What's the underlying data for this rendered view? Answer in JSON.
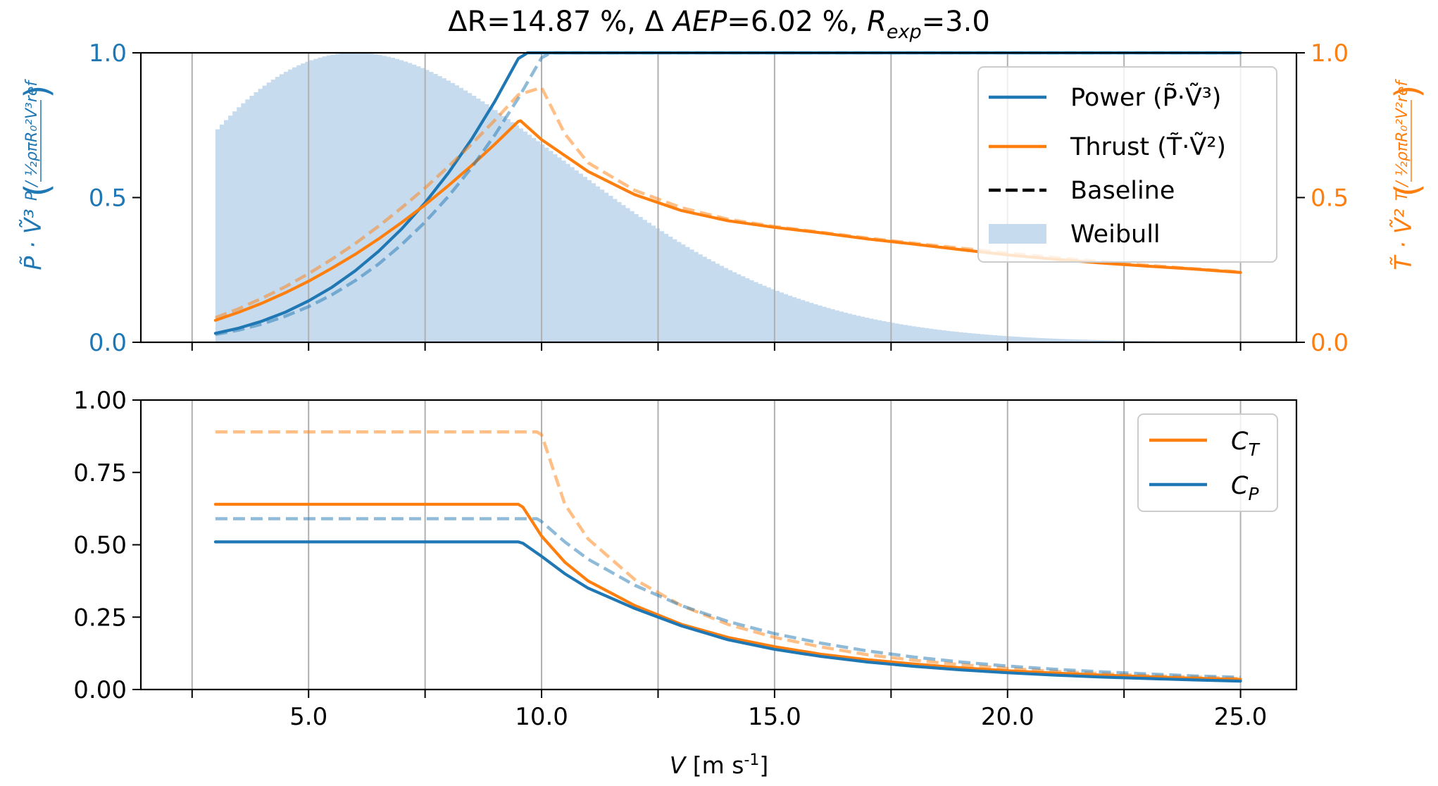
{
  "chart_data": [
    {
      "type": "line",
      "panel": "top",
      "title_parts": [
        "ΔR=14.87 %, Δ ",
        "AEP",
        "=6.02 %, ",
        "R",
        "exp",
        "=3.0"
      ],
      "title": "ΔR=14.87 %, ΔAEP=6.02 %, R_exp=3.0",
      "xlim": [
        1.4,
        26.2
      ],
      "ylim_left": [
        0,
        1.0
      ],
      "ylim_right": [
        0,
        1.0
      ],
      "x_ticks": [
        2.5,
        5.0,
        7.5,
        10.0,
        12.5,
        15.0,
        17.5,
        20.0,
        22.5,
        25.0
      ],
      "y_ticks_left": [
        0.0,
        0.5,
        1.0
      ],
      "y_tick_labels_left": [
        "0.0",
        "0.5",
        "1.0"
      ],
      "y_ticks_right": [
        0.0,
        0.5,
        1.0
      ],
      "y_tick_labels_right": [
        "0.0",
        "0.5",
        "1.0"
      ],
      "ylabel_left_sym": "P̃ · Ṽ³",
      "ylabel_left_frac": "P / ½ρπR₀²V³ref",
      "ylabel_right_sym": "T̃ · Ṽ²",
      "ylabel_right_frac": "T / ½ρπR₀²V²ref",
      "grid": "x-vertical",
      "legend_position": "top-right",
      "legend": [
        {
          "label": "Power (P̃·Ṽ³)",
          "style": "solid",
          "color": "#1f77b4"
        },
        {
          "label": "Thrust (T̃·Ṽ²)",
          "style": "solid",
          "color": "#ff7f0e"
        },
        {
          "label": "Baseline",
          "style": "dashed",
          "color": "#000000"
        },
        {
          "label": "Weibull",
          "style": "patch",
          "color": "#1f77b4"
        }
      ],
      "weibull": {
        "k": 2.0,
        "A": 8.485,
        "range": [
          3,
          25
        ],
        "label": "Weibull"
      },
      "series": [
        {
          "name": "Power",
          "axis": "left",
          "style": "solid",
          "color": "#1f77b4",
          "x": [
            3,
            3.5,
            4,
            4.5,
            5,
            5.5,
            6,
            6.5,
            7,
            7.5,
            8,
            8.5,
            9,
            9.5,
            9.7,
            10,
            12,
            15,
            18,
            21,
            25
          ],
          "y": [
            0.031,
            0.049,
            0.073,
            0.104,
            0.143,
            0.19,
            0.247,
            0.314,
            0.392,
            0.482,
            0.585,
            0.702,
            0.833,
            0.98,
            1.0,
            1.0,
            1.0,
            1.0,
            1.0,
            1.0,
            1.0
          ]
        },
        {
          "name": "Thrust",
          "axis": "right",
          "style": "solid",
          "color": "#ff7f0e",
          "x": [
            3,
            3.5,
            4,
            4.5,
            5,
            5.5,
            6,
            6.5,
            7,
            7.5,
            8,
            8.5,
            9,
            9.5,
            9.55,
            10,
            11,
            12,
            13,
            14,
            15,
            16,
            17,
            18,
            19,
            20,
            21,
            22,
            23,
            24,
            25
          ],
          "y": [
            0.076,
            0.104,
            0.135,
            0.171,
            0.211,
            0.256,
            0.304,
            0.357,
            0.414,
            0.475,
            0.541,
            0.611,
            0.685,
            0.763,
            0.765,
            0.7,
            0.59,
            0.51,
            0.455,
            0.42,
            0.397,
            0.378,
            0.357,
            0.339,
            0.32,
            0.302,
            0.287,
            0.274,
            0.263,
            0.253,
            0.241
          ]
        },
        {
          "name": "Power baseline",
          "axis": "left",
          "style": "dashed",
          "color": "#1f77b4",
          "alpha": 0.5,
          "x": [
            3,
            3.5,
            4,
            4.5,
            5,
            5.5,
            6,
            6.5,
            7,
            7.5,
            8,
            8.5,
            9,
            9.5,
            10,
            10.2,
            12,
            15,
            18,
            21,
            25
          ],
          "y": [
            0.027,
            0.042,
            0.063,
            0.09,
            0.123,
            0.164,
            0.213,
            0.27,
            0.338,
            0.415,
            0.504,
            0.604,
            0.717,
            0.843,
            0.983,
            1.0,
            1.0,
            1.0,
            1.0,
            1.0,
            1.0
          ]
        },
        {
          "name": "Thrust baseline",
          "axis": "right",
          "style": "dashed",
          "color": "#ff7f0e",
          "alpha": 0.5,
          "x": [
            3,
            3.5,
            4,
            4.5,
            5,
            5.5,
            6,
            6.5,
            7,
            7.5,
            8,
            8.5,
            9,
            9.5,
            10,
            10.5,
            11,
            12,
            13,
            14,
            15,
            16,
            17,
            18,
            19,
            20,
            21,
            22,
            23,
            24,
            25
          ],
          "y": [
            0.085,
            0.116,
            0.152,
            0.192,
            0.237,
            0.287,
            0.341,
            0.401,
            0.465,
            0.533,
            0.607,
            0.685,
            0.768,
            0.855,
            0.88,
            0.72,
            0.62,
            0.525,
            0.465,
            0.425,
            0.4,
            0.38,
            0.36,
            0.342,
            0.325,
            0.308,
            0.293,
            0.279,
            0.266,
            0.254,
            0.243
          ]
        }
      ]
    },
    {
      "type": "line",
      "panel": "bottom",
      "xlim": [
        1.4,
        26.2
      ],
      "ylim": [
        0,
        1.0
      ],
      "x_ticks": [
        2.5,
        5.0,
        7.5,
        10.0,
        12.5,
        15.0,
        17.5,
        20.0,
        22.5,
        25.0
      ],
      "x_tick_labels": [
        "",
        "5.0",
        "",
        "10.0",
        "",
        "15.0",
        "",
        "20.0",
        "",
        "25.0"
      ],
      "y_ticks": [
        0.0,
        0.25,
        0.5,
        0.75,
        1.0
      ],
      "y_tick_labels": [
        "0.00",
        "0.25",
        "0.50",
        "0.75",
        "1.00"
      ],
      "xlabel_parts": [
        "V",
        " [m s",
        "-1",
        "]"
      ],
      "xlabel": "V [m s-1]",
      "grid": "x-vertical",
      "legend_position": "top-right",
      "legend": [
        {
          "label_main": "C",
          "label_sub": "T",
          "label": "C_T",
          "color": "#ff7f0e"
        },
        {
          "label_main": "C",
          "label_sub": "P",
          "label": "C_P",
          "color": "#1f77b4"
        }
      ],
      "series": [
        {
          "name": "C_T",
          "style": "solid",
          "color": "#ff7f0e",
          "x": [
            3,
            9.5,
            9.6,
            10,
            10.5,
            11,
            12,
            13,
            14,
            15,
            16,
            17,
            18,
            19,
            20,
            21,
            22,
            23,
            24,
            25
          ],
          "y": [
            0.64,
            0.64,
            0.63,
            0.53,
            0.44,
            0.375,
            0.29,
            0.225,
            0.18,
            0.148,
            0.122,
            0.103,
            0.088,
            0.075,
            0.065,
            0.057,
            0.05,
            0.044,
            0.039,
            0.035
          ]
        },
        {
          "name": "C_P",
          "style": "solid",
          "color": "#1f77b4",
          "x": [
            3,
            9.5,
            9.6,
            10,
            10.5,
            11,
            12,
            13,
            14,
            15,
            16,
            17,
            18,
            19,
            20,
            21,
            22,
            23,
            24,
            25
          ],
          "y": [
            0.51,
            0.51,
            0.505,
            0.46,
            0.4,
            0.35,
            0.28,
            0.22,
            0.172,
            0.139,
            0.114,
            0.095,
            0.08,
            0.068,
            0.058,
            0.05,
            0.043,
            0.038,
            0.033,
            0.029
          ]
        },
        {
          "name": "C_T baseline",
          "style": "dashed",
          "color": "#ff7f0e",
          "alpha": 0.5,
          "x": [
            3,
            9.9,
            10,
            10.5,
            11,
            12,
            13,
            14,
            15,
            16,
            17,
            18,
            19,
            20,
            21,
            22,
            23,
            24,
            25
          ],
          "y": [
            0.89,
            0.89,
            0.88,
            0.64,
            0.52,
            0.38,
            0.29,
            0.225,
            0.18,
            0.147,
            0.12,
            0.101,
            0.086,
            0.073,
            0.063,
            0.055,
            0.048,
            0.043,
            0.038
          ]
        },
        {
          "name": "C_P baseline",
          "style": "dashed",
          "color": "#1f77b4",
          "alpha": 0.5,
          "x": [
            3,
            9.9,
            10,
            10.5,
            11,
            12,
            13,
            14,
            15,
            16,
            17,
            18,
            19,
            20,
            21,
            22,
            23,
            24,
            25
          ],
          "y": [
            0.59,
            0.59,
            0.58,
            0.51,
            0.45,
            0.36,
            0.29,
            0.235,
            0.193,
            0.16,
            0.133,
            0.112,
            0.095,
            0.081,
            0.07,
            0.061,
            0.054,
            0.047,
            0.042
          ]
        }
      ]
    }
  ],
  "colors": {
    "blue": "#1f77b4",
    "orange": "#ff7f0e",
    "weibull": "#c6dbee",
    "grid": "#b0b0b0"
  }
}
